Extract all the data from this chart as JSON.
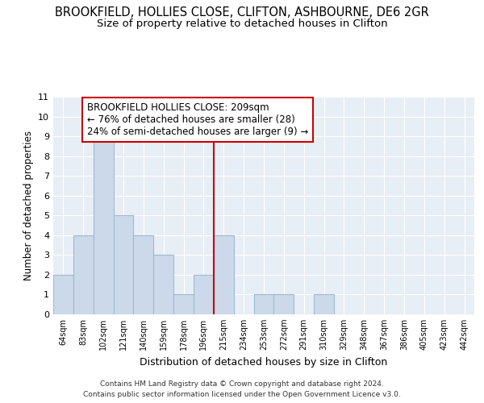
{
  "title": "BROOKFIELD, HOLLIES CLOSE, CLIFTON, ASHBOURNE, DE6 2GR",
  "subtitle": "Size of property relative to detached houses in Clifton",
  "xlabel": "Distribution of detached houses by size in Clifton",
  "ylabel": "Number of detached properties",
  "bins": [
    "64sqm",
    "83sqm",
    "102sqm",
    "121sqm",
    "140sqm",
    "159sqm",
    "178sqm",
    "196sqm",
    "215sqm",
    "234sqm",
    "253sqm",
    "272sqm",
    "291sqm",
    "310sqm",
    "329sqm",
    "348sqm",
    "367sqm",
    "386sqm",
    "405sqm",
    "423sqm",
    "442sqm"
  ],
  "counts": [
    2,
    4,
    9,
    5,
    4,
    3,
    1,
    2,
    4,
    0,
    1,
    1,
    0,
    1,
    0,
    0,
    0,
    0,
    0,
    0,
    0
  ],
  "bar_color": "#ccd9ea",
  "bar_edgecolor": "#9eb8d0",
  "highlight_line_index": 8,
  "highlight_line_color": "#cc0000",
  "annotation_text": "BROOKFIELD HOLLIES CLOSE: 209sqm\n← 76% of detached houses are smaller (28)\n24% of semi-detached houses are larger (9) →",
  "annotation_box_color": "#ffffff",
  "annotation_box_edgecolor": "#cc0000",
  "ylim": [
    0,
    11
  ],
  "yticks": [
    0,
    1,
    2,
    3,
    4,
    5,
    6,
    7,
    8,
    9,
    10,
    11
  ],
  "background_color": "#e8eef5",
  "footer_line1": "Contains HM Land Registry data © Crown copyright and database right 2024.",
  "footer_line2": "Contains public sector information licensed under the Open Government Licence v3.0.",
  "title_fontsize": 10.5,
  "subtitle_fontsize": 9.5,
  "annotation_fontsize": 8.5,
  "ylabel_fontsize": 8.5,
  "xlabel_fontsize": 9,
  "footer_fontsize": 6.5
}
